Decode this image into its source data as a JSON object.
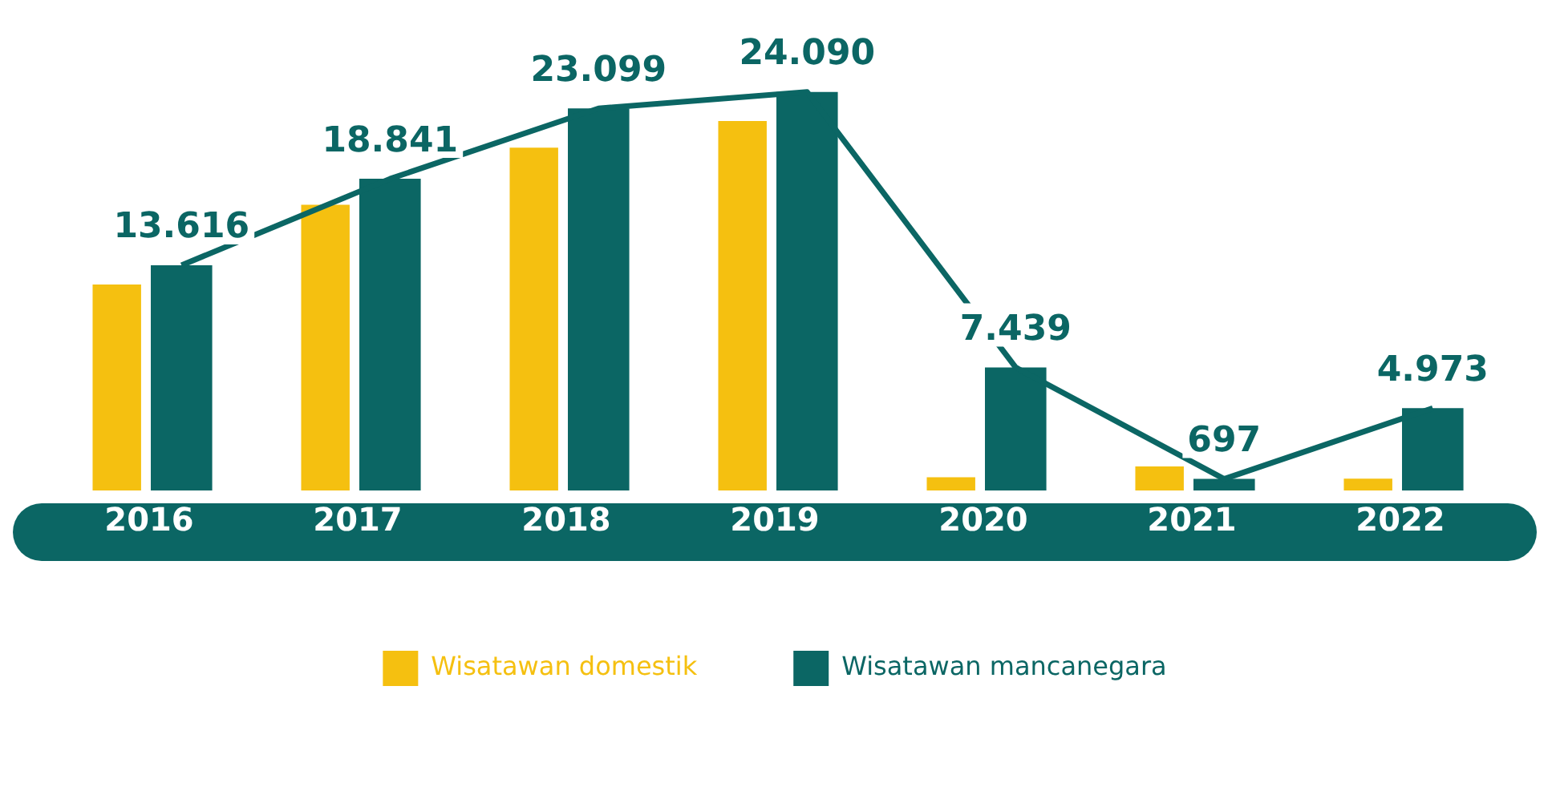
{
  "chart_data": {
    "type": "bar",
    "categories": [
      "2016",
      "2017",
      "2018",
      "2019",
      "2020",
      "2021",
      "2022"
    ],
    "series": [
      {
        "name": "Wisatawan domestik",
        "color": "#f5c010",
        "values": [
          12450,
          17270,
          20720,
          22330,
          800,
          1450,
          720
        ]
      },
      {
        "name": "Wisatawan mancanegara",
        "color": "#0b6664",
        "values": [
          13616,
          18841,
          23099,
          24090,
          7439,
          697,
          4973
        ],
        "value_labels": [
          "13.616",
          "18.841",
          "23.099",
          "24.090",
          "7.439",
          "697",
          "4.973"
        ]
      },
      {
        "type": "line",
        "color": "#0b6664",
        "values": [
          13616,
          18841,
          23099,
          24090,
          7439,
          697,
          4973
        ]
      }
    ],
    "legend": "bottom",
    "grid": false
  }
}
